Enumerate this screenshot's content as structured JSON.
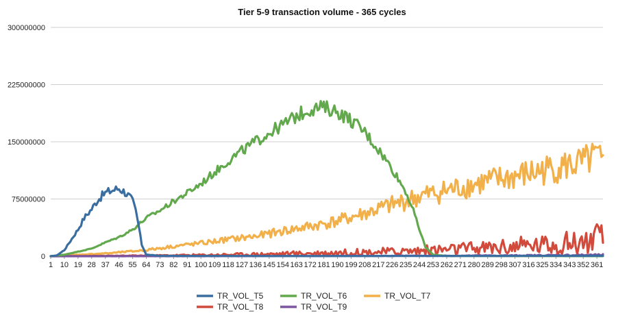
{
  "chart_data": {
    "type": "line",
    "title": "Tier 5-9 transaction volume - 365 cycles",
    "xlabel": "",
    "ylabel": "",
    "ylim": [
      0,
      300000000
    ],
    "y_ticks": [
      "0",
      "75000000",
      "150000000",
      "225000000",
      "300000000"
    ],
    "x_range": [
      1,
      365
    ],
    "x_ticks": [
      "1",
      "10",
      "19",
      "28",
      "37",
      "46",
      "55",
      "64",
      "73",
      "82",
      "91",
      "100",
      "109",
      "118",
      "127",
      "136",
      "145",
      "154",
      "163",
      "172",
      "181",
      "190",
      "199",
      "208",
      "217",
      "226",
      "235",
      "244",
      "253",
      "262",
      "271",
      "280",
      "289",
      "298",
      "307",
      "316",
      "325",
      "334",
      "343",
      "352",
      "361"
    ],
    "grid": "horizontal",
    "legend_position": "bottom",
    "series": [
      {
        "name": "TR_VOL_T5",
        "color": "#3a6da0",
        "x": [
          1,
          5,
          10,
          14,
          19,
          23,
          28,
          32,
          37,
          41,
          46,
          50,
          53,
          55,
          57,
          59,
          61,
          64,
          73,
          100,
          150,
          200,
          253,
          300,
          365
        ],
        "values": [
          0,
          1000000,
          8000000,
          20000000,
          35000000,
          50000000,
          62000000,
          74000000,
          83000000,
          86000000,
          89000000,
          84000000,
          78000000,
          72000000,
          60000000,
          40000000,
          15000000,
          2000000,
          500000,
          300000,
          200000,
          200000,
          300000,
          400000,
          500000
        ]
      },
      {
        "name": "TR_VOL_T6",
        "color": "#62a84c",
        "x": [
          1,
          10,
          19,
          28,
          37,
          46,
          55,
          64,
          73,
          82,
          91,
          100,
          109,
          118,
          127,
          136,
          145,
          154,
          163,
          172,
          181,
          190,
          199,
          208,
          217,
          226,
          235,
          240,
          244,
          248,
          253,
          262,
          300,
          365
        ],
        "values": [
          0,
          2000000,
          6000000,
          10000000,
          18000000,
          25000000,
          35000000,
          50000000,
          60000000,
          72000000,
          83000000,
          95000000,
          110000000,
          125000000,
          138000000,
          150000000,
          162000000,
          172000000,
          184000000,
          193000000,
          195000000,
          190000000,
          178000000,
          163000000,
          140000000,
          115000000,
          85000000,
          60000000,
          35000000,
          12000000,
          2000000,
          300000,
          200000,
          100000
        ]
      },
      {
        "name": "TR_VOL_T7",
        "color": "#f2b04a",
        "x": [
          1,
          20,
          40,
          64,
          82,
          100,
          118,
          136,
          154,
          172,
          190,
          208,
          226,
          244,
          262,
          280,
          298,
          316,
          334,
          352,
          361,
          365
        ],
        "values": [
          0,
          2000000,
          4000000,
          8000000,
          13000000,
          17000000,
          22000000,
          26000000,
          33000000,
          39000000,
          46000000,
          56000000,
          67000000,
          78000000,
          86000000,
          94000000,
          101000000,
          108000000,
          116000000,
          122000000,
          130000000,
          118000000
        ]
      },
      {
        "name": "TR_VOL_T8",
        "color": "#d24a3c",
        "x": [
          1,
          50,
          100,
          150,
          200,
          226,
          253,
          280,
          298,
          316,
          334,
          352,
          361,
          365
        ],
        "values": [
          0,
          500000,
          1500000,
          3000000,
          5000000,
          6000000,
          8000000,
          10000000,
          12000000,
          14000000,
          16000000,
          19000000,
          22000000,
          22000000
        ]
      },
      {
        "name": "TR_VOL_T9",
        "color": "#7a55a0",
        "x": [
          1,
          100,
          200,
          300,
          365
        ],
        "values": [
          0,
          100000,
          300000,
          800000,
          1500000
        ]
      }
    ]
  }
}
